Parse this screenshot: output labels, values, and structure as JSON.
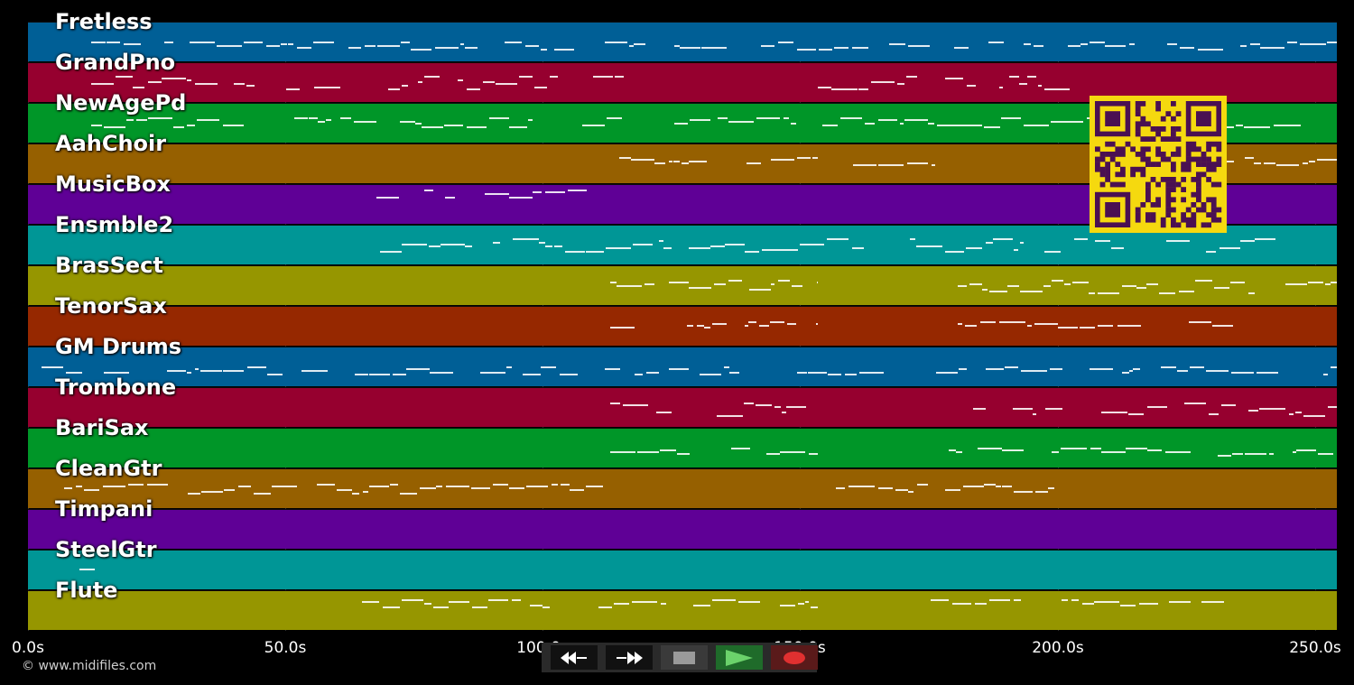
{
  "tracks": [
    {
      "name": "Fretless",
      "color": "#005f96"
    },
    {
      "name": "GrandPno",
      "color": "#96002f"
    },
    {
      "name": "NewAgePd",
      "color": "#009628"
    },
    {
      "name": "AahChoir",
      "color": "#966000"
    },
    {
      "name": "MusicBox",
      "color": "#5f0096"
    },
    {
      "name": "Ensmble2",
      "color": "#009696"
    },
    {
      "name": "BrasSect",
      "color": "#969600"
    },
    {
      "name": "TenorSax",
      "color": "#962800"
    },
    {
      "name": "GM Drums",
      "color": "#005f96"
    },
    {
      "name": "Trombone",
      "color": "#96002f"
    },
    {
      "name": "BariSax",
      "color": "#009628"
    },
    {
      "name": "CleanGtr",
      "color": "#966000"
    },
    {
      "name": "Timpani",
      "color": "#5f0096"
    },
    {
      "name": "SteelGtr",
      "color": "#009696"
    },
    {
      "name": "Flute",
      "color": "#969600"
    }
  ],
  "timeline": {
    "ticks": [
      "0.0s",
      "50.0s",
      "100.0s",
      "150.0s",
      "200.0s",
      "250.0s"
    ]
  },
  "controls": {
    "rewind_icon": "rewind-icon",
    "fast_forward_icon": "fast-forward-icon",
    "stop_icon": "stop-icon",
    "play_icon": "play-icon",
    "record_icon": "record-icon",
    "rewind_color": "#111111",
    "fast_forward_color": "#111111",
    "stop_color": "#3a3a3a",
    "play_color": "#1f6b2a",
    "record_color": "#5a1a1a"
  },
  "footer": {
    "copyright": "© www.midifiles.com"
  }
}
